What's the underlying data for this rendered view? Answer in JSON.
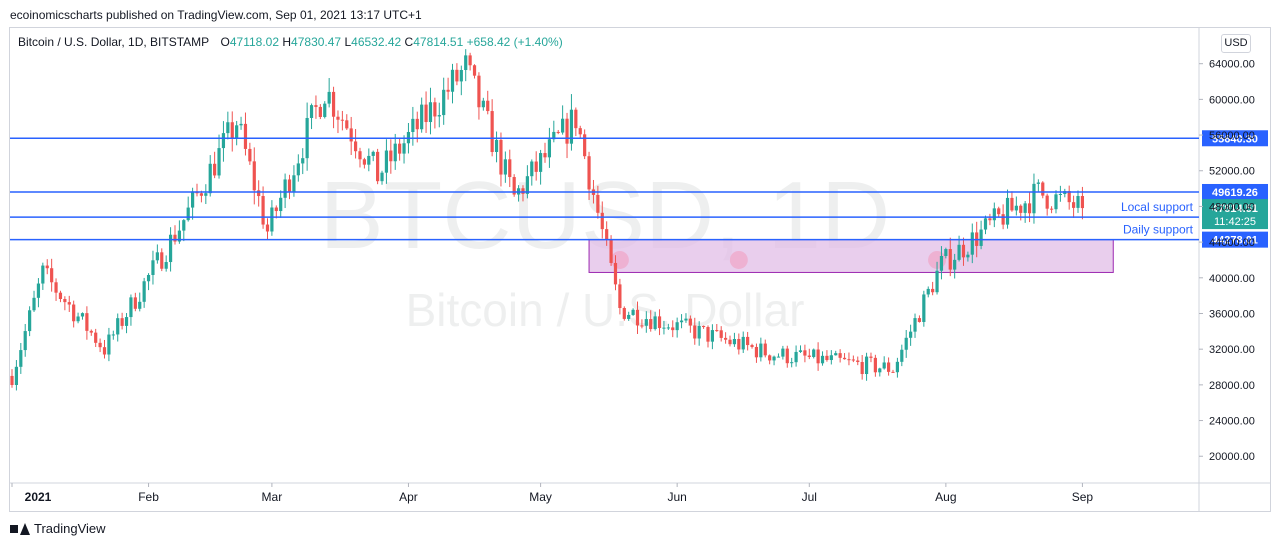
{
  "header": {
    "publisher_text": "ecoinomicscharts published on TradingView.com, Sep 01, 2021 13:17 UTC+1"
  },
  "legend": {
    "symbol": "Bitcoin / U.S. Dollar, 1D, BITSTAMP",
    "open_label": "O",
    "open": "47118.02",
    "high_label": "H",
    "high": "47830.47",
    "low_label": "L",
    "low": "46532.42",
    "close_label": "C",
    "close": "47814.51",
    "change": "+658.42 (+1.40%)"
  },
  "currency_button": "USD",
  "watermark": {
    "ticker": "BTCUSD, 1D",
    "name": "Bitcoin / U.S. Dollar"
  },
  "footer": {
    "brand": "TradingView"
  },
  "colors": {
    "up": "#26a69a",
    "down": "#ef5350",
    "level_line": "#2962ff",
    "zone_fill": "#e1bee7",
    "zone_border": "#9c27b0"
  },
  "chart_data": {
    "type": "candlestick",
    "title": "",
    "xlabel": "",
    "ylabel": "",
    "ylim": [
      17000,
      68000
    ],
    "y_ticks": [
      20000,
      24000,
      28000,
      32000,
      36000,
      40000,
      44000,
      48000,
      52000,
      56000,
      60000,
      64000
    ],
    "y_tick_labels": [
      "20000.00",
      "24000.00",
      "28000.00",
      "32000.00",
      "36000.00",
      "40000.00",
      "44000.00",
      "48000.00",
      "52000.00",
      "56000.00",
      "60000.00",
      "64000.00"
    ],
    "x_ticks": [
      "2021",
      "Feb",
      "Mar",
      "Apr",
      "May",
      "Jun",
      "Jul",
      "Aug",
      "Sep"
    ],
    "x_range": [
      "2021-01-01",
      "2021-09-01"
    ],
    "key_points": [
      {
        "date": "2021-01-01",
        "close": 29000
      },
      {
        "date": "2021-01-08",
        "close": 40500
      },
      {
        "date": "2021-01-22",
        "close": 32000
      },
      {
        "date": "2021-02-09",
        "close": 46500
      },
      {
        "date": "2021-02-21",
        "close": 57500
      },
      {
        "date": "2021-02-28",
        "close": 45200
      },
      {
        "date": "2021-03-13",
        "close": 61200
      },
      {
        "date": "2021-03-25",
        "close": 51500
      },
      {
        "date": "2021-04-14",
        "close": 63500
      },
      {
        "date": "2021-04-25",
        "close": 49000
      },
      {
        "date": "2021-05-09",
        "close": 58000
      },
      {
        "date": "2021-05-19",
        "close": 36500
      },
      {
        "date": "2021-06-22",
        "close": 31500
      },
      {
        "date": "2021-07-20",
        "close": 29800
      },
      {
        "date": "2021-07-31",
        "close": 41500
      },
      {
        "date": "2021-08-14",
        "close": 47000
      },
      {
        "date": "2021-08-22",
        "close": 49500
      },
      {
        "date": "2021-09-01",
        "close": 47814.51
      }
    ],
    "horizontal_levels": [
      {
        "value": 55640.3,
        "label": "55640.30"
      },
      {
        "value": 49619.26,
        "label": "49619.26"
      },
      {
        "value": 46800,
        "annotation": "Local support"
      },
      {
        "value": 44278.01,
        "label": "44278.01",
        "annotation": "Daily support"
      }
    ],
    "zone": {
      "from_date": "2021-05-12",
      "to_date": "2021-09-08",
      "low": 40600,
      "high": 44278.01
    },
    "touch_markers": [
      "2021-05-19",
      "2021-06-15",
      "2021-07-30"
    ],
    "last_price": {
      "value": 47814.51,
      "label": "47814.51",
      "countdown": "11:42:25"
    }
  }
}
